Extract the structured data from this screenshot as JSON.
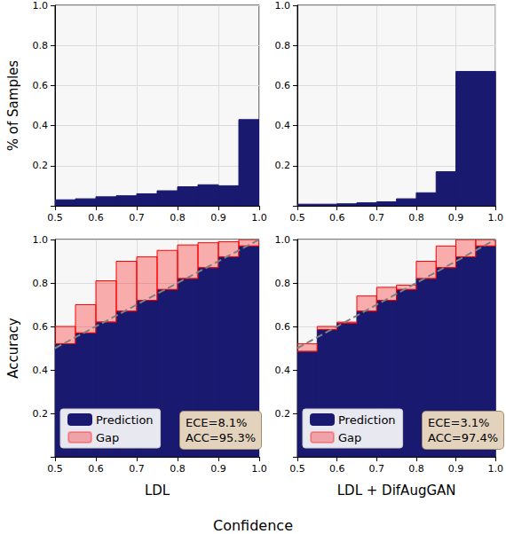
{
  "chart_data": [
    {
      "type": "histogram",
      "ylabel": "% of Samples",
      "bins": [
        0.5,
        0.55,
        0.6,
        0.65,
        0.7,
        0.75,
        0.8,
        0.85,
        0.9,
        0.95,
        1.0
      ],
      "values": [
        0.03,
        0.035,
        0.045,
        0.05,
        0.06,
        0.075,
        0.095,
        0.105,
        0.1,
        0.43
      ],
      "color": "#191970",
      "xlim": [
        0.5,
        1.0
      ],
      "ylim": [
        0,
        1.0
      ],
      "xticks": [
        0.5,
        0.6,
        0.7,
        0.8,
        0.9,
        {
          "value": 1.0,
          "label": "1.0"
        }
      ],
      "yticks": [
        0.2,
        0.4,
        0.6,
        0.8,
        {
          "value": 1.0,
          "label": "1.0"
        }
      ],
      "grid": true
    },
    {
      "type": "histogram",
      "bins": [
        0.5,
        0.55,
        0.6,
        0.65,
        0.7,
        0.75,
        0.8,
        0.85,
        0.9,
        0.95,
        1.0
      ],
      "values": [
        0.008,
        0.008,
        0.01,
        0.015,
        0.02,
        0.035,
        0.065,
        0.17,
        0.67,
        0.67
      ],
      "color": "#191970",
      "xlim": [
        0.5,
        1.0
      ],
      "ylim": [
        0,
        1.0
      ],
      "xticks": [
        0.5,
        0.6,
        0.7,
        0.8,
        0.9,
        {
          "value": 1.0,
          "label": "1.0"
        }
      ],
      "yticks": [
        0.2,
        0.4,
        0.6,
        0.8,
        {
          "value": 1.0,
          "label": "1.0"
        }
      ],
      "grid": true
    },
    {
      "type": "bar",
      "xlabel": "LDL",
      "ylabel": "Accuracy",
      "bins": [
        0.5,
        0.55,
        0.6,
        0.65,
        0.7,
        0.75,
        0.8,
        0.85,
        0.9,
        0.95,
        1.0
      ],
      "series": [
        {
          "name": "Prediction",
          "color": "#191970",
          "values": [
            0.52,
            0.57,
            0.62,
            0.67,
            0.72,
            0.77,
            0.82,
            0.87,
            0.92,
            0.97
          ]
        },
        {
          "name": "Gap",
          "color": "#ff0000",
          "values": [
            0.08,
            0.13,
            0.19,
            0.23,
            0.2,
            0.18,
            0.155,
            0.115,
            0.07,
            0.03
          ]
        },
        {
          "type": "line",
          "color": "#808080",
          "line_style": "dashed",
          "x": [
            0.5,
            1.0
          ],
          "values": [
            0.5,
            1.0
          ]
        }
      ],
      "stacked": true,
      "legend": "lower left",
      "annotations": [
        "ECE=8.1%",
        "ACC=95.3%"
      ],
      "xlim": [
        0.5,
        1.0
      ],
      "ylim": [
        0,
        1.0
      ],
      "xticks": [
        0.5,
        0.6,
        0.7,
        0.8,
        0.9,
        {
          "value": 1.0,
          "label": "1.0"
        }
      ],
      "yticks": [
        0.2,
        0.4,
        0.6,
        0.8,
        {
          "value": 1.0,
          "label": "1.0"
        }
      ],
      "grid": true
    },
    {
      "type": "bar",
      "xlabel": "LDL + DifAugGAN",
      "bins": [
        0.5,
        0.55,
        0.6,
        0.65,
        0.7,
        0.75,
        0.8,
        0.85,
        0.9,
        0.95,
        1.0
      ],
      "series": [
        {
          "name": "Prediction",
          "color": "#191970",
          "values": [
            0.485,
            0.585,
            0.615,
            0.67,
            0.72,
            0.77,
            0.82,
            0.87,
            0.92,
            0.97
          ]
        },
        {
          "name": "Gap",
          "color": "#ff0000",
          "values": [
            0.035,
            0.015,
            0.005,
            0.07,
            0.06,
            0.02,
            0.08,
            0.1,
            0.08,
            0.03
          ]
        },
        {
          "type": "line",
          "color": "#808080",
          "line_style": "dashed",
          "x": [
            0.5,
            1.0
          ],
          "values": [
            0.5,
            1.0
          ]
        }
      ],
      "stacked": true,
      "legend": "lower left",
      "annotations": [
        "ECE=3.1%",
        "ACC=97.4%"
      ],
      "xlim": [
        0.5,
        1.0
      ],
      "ylim": [
        0,
        1.0
      ],
      "xticks": [
        0.5,
        0.6,
        0.7,
        0.8,
        0.9,
        {
          "value": 1.0,
          "label": "1.0"
        }
      ],
      "yticks": [
        0.2,
        0.4,
        0.6,
        0.8,
        {
          "value": 1.0,
          "label": "1.0"
        }
      ],
      "grid": true
    }
  ],
  "shared_xlabel": "Confidence"
}
